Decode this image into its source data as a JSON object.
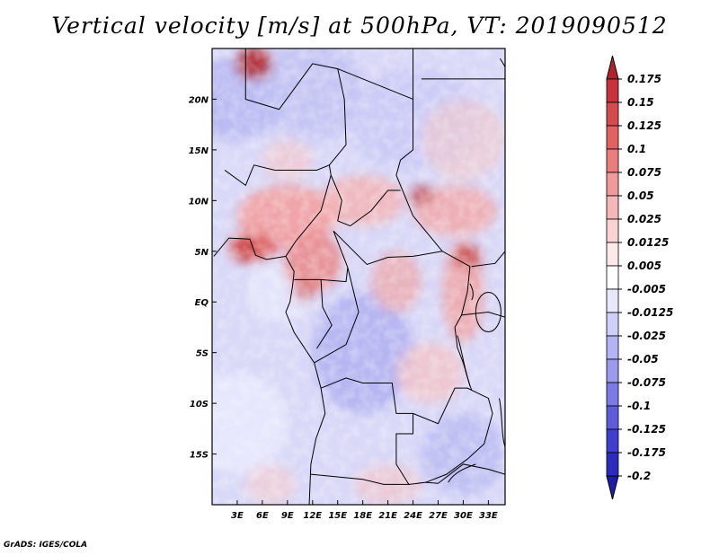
{
  "chart_data": {
    "type": "heatmap",
    "title": "Vertical velocity [m/s] at 500hPa, VT: 2019090512",
    "variable": "Vertical velocity",
    "units": "m/s",
    "level": "500hPa",
    "valid_time": "2019090512",
    "x_ticks": [
      "3E",
      "6E",
      "9E",
      "12E",
      "15E",
      "18E",
      "21E",
      "24E",
      "27E",
      "30E",
      "33E"
    ],
    "x_tick_values": [
      3,
      6,
      9,
      12,
      15,
      18,
      21,
      24,
      27,
      30,
      33
    ],
    "y_ticks": [
      "20N",
      "15N",
      "10N",
      "5N",
      "EQ",
      "5S",
      "10S",
      "15S"
    ],
    "y_tick_values": [
      20,
      15,
      10,
      5,
      0,
      -5,
      -10,
      -15
    ],
    "lon_range": [
      0,
      35
    ],
    "lat_range": [
      -20,
      25
    ],
    "colorbar_labels": [
      "0.175",
      "0.15",
      "0.125",
      "0.1",
      "0.075",
      "0.05",
      "0.025",
      "0.0125",
      "0.005",
      "-0.005",
      "-0.0125",
      "-0.025",
      "-0.05",
      "-0.075",
      "-0.1",
      "-0.125",
      "-0.175",
      "-0.2"
    ],
    "colorbar_colors": [
      "#b3212b",
      "#c9323a",
      "#d64b4b",
      "#e26161",
      "#ea7c7c",
      "#f09a9a",
      "#f5b8b8",
      "#fad2d2",
      "#fde9e9",
      "#ffffff",
      "#e8e8fd",
      "#cfcffa",
      "#b3b3f5",
      "#9a9aef",
      "#7b7be6",
      "#5d5ddc",
      "#3f3fcf",
      "#2b2bbd",
      "#1d1da8"
    ],
    "pattern": "Positive (upward, red) velocities concentrated in a band near 5-12N across West and Central Africa and over the Gulf of Guinea coast/Congo basin; weak negative (blue) values dominate the Sahara, southern Africa and the Atlantic."
  },
  "credit": "GrADS: IGES/COLA"
}
